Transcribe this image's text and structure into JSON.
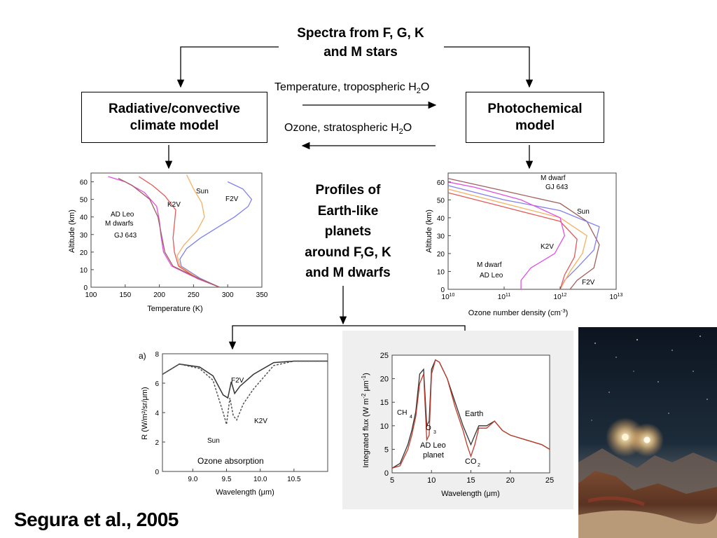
{
  "title": {
    "line1": "Spectra from F, G, K",
    "line2": "and M stars"
  },
  "boxes": {
    "climate": {
      "line1": "Radiative/convective",
      "line2": "climate model"
    },
    "photochem": {
      "line1": "Photochemical",
      "line2": "model"
    }
  },
  "arrows": {
    "top": "Temperature, tropospheric H",
    "top_sub": "2",
    "top_end": "O",
    "bottom": "Ozone, stratospheric H",
    "bottom_sub": "2",
    "bottom_end": "O"
  },
  "center": {
    "lines": [
      "Profiles of",
      "Earth-like",
      "planets",
      "around F,G, K",
      "and M dwarfs"
    ]
  },
  "credit": "Segura et al., 2005",
  "colors": {
    "sun": "#f5b062",
    "f2v": "#8080f0",
    "k2v": "#e55a5a",
    "mdwarf_ad": "#e050e0",
    "mdwarf_gj": "#a06060",
    "orange2": "#f0a050"
  },
  "chart_data": [
    {
      "type": "line",
      "id": "temperature",
      "xlabel": "Temperature (K)",
      "ylabel": "Altitude (km)",
      "xlim": [
        100,
        350
      ],
      "ylim": [
        0,
        65
      ],
      "xticks": [
        "100",
        "150",
        "200",
        "250",
        "300",
        "350"
      ],
      "yticks": [
        "0",
        "10",
        "20",
        "30",
        "40",
        "50",
        "60"
      ],
      "annotations": [
        "Sun",
        "F2V",
        "K2V",
        "AD Leo",
        "M dwarfs",
        "GJ 643"
      ],
      "series": [
        {
          "name": "F2V",
          "color": "#8080f0",
          "points": [
            [
              288,
              0
            ],
            [
              260,
              5
            ],
            [
              232,
              12
            ],
            [
              230,
              16
            ],
            [
              240,
              22
            ],
            [
              260,
              28
            ],
            [
              285,
              34
            ],
            [
              310,
              40
            ],
            [
              330,
              46
            ],
            [
              335,
              50
            ],
            [
              322,
              56
            ],
            [
              300,
              60
            ]
          ]
        },
        {
          "name": "Sun",
          "color": "#f5b062",
          "points": [
            [
              288,
              0
            ],
            [
              258,
              5
            ],
            [
              230,
              12
            ],
            [
              226,
              18
            ],
            [
              236,
              24
            ],
            [
              255,
              32
            ],
            [
              266,
              40
            ],
            [
              262,
              48
            ],
            [
              250,
              56
            ],
            [
              240,
              64
            ]
          ]
        },
        {
          "name": "K2V",
          "color": "#e55a5a",
          "points": [
            [
              288,
              0
            ],
            [
              255,
              5
            ],
            [
              228,
              12
            ],
            [
              222,
              20
            ],
            [
              220,
              28
            ],
            [
              222,
              36
            ],
            [
              224,
              44
            ],
            [
              208,
              52
            ],
            [
              190,
              58
            ],
            [
              170,
              63
            ]
          ]
        },
        {
          "name": "M dwarfs",
          "color": "#e050e0",
          "points": [
            [
              288,
              0
            ],
            [
              250,
              6
            ],
            [
              218,
              12
            ],
            [
              206,
              20
            ],
            [
              202,
              30
            ],
            [
              200,
              38
            ],
            [
              196,
              46
            ],
            [
              178,
              54
            ],
            [
              150,
              60
            ],
            [
              125,
              63
            ]
          ]
        },
        {
          "name": "",
          "color": "#a06060",
          "points": [
            [
              288,
              0
            ],
            [
              252,
              6
            ],
            [
              220,
              12
            ],
            [
              208,
              20
            ],
            [
              203,
              30
            ],
            [
              198,
              40
            ],
            [
              186,
              50
            ],
            [
              160,
              58
            ],
            [
              140,
              62
            ]
          ]
        }
      ]
    },
    {
      "type": "line",
      "id": "ozone",
      "xlabel": "Ozone number density (cm",
      "xlabel_sup": "-3",
      "xlabel_end": ")",
      "ylabel": "Altitude (km)",
      "xscale": "log",
      "xlim": [
        10000000000.0,
        10000000000000.0
      ],
      "ylim": [
        0,
        65
      ],
      "xticks": [
        "10",
        "10",
        "10",
        "10"
      ],
      "xtick_sups": [
        "10",
        "11",
        "12",
        "13"
      ],
      "yticks": [
        "0",
        "10",
        "20",
        "30",
        "40",
        "50",
        "60"
      ],
      "annotations": [
        "M dwarf",
        "GJ 643",
        "Sun",
        "K2V",
        "M dwarf",
        "AD Leo",
        "F2V"
      ],
      "series": [
        {
          "name": "GJ 643",
          "color": "#a06060",
          "points": [
            [
              10000000000.0,
              62
            ],
            [
              100000000000.0,
              55
            ],
            [
              1000000000000.0,
              48
            ],
            [
              3000000000000.0,
              38
            ],
            [
              5000000000000.0,
              25
            ],
            [
              4000000000000.0,
              12
            ],
            [
              2000000000000.0,
              5
            ],
            [
              1500000000000.0,
              0
            ]
          ]
        },
        {
          "name": "F2V",
          "color": "#8080f0",
          "points": [
            [
              10000000000.0,
              58
            ],
            [
              100000000000.0,
              50
            ],
            [
              1000000000000.0,
              44
            ],
            [
              5000000000000.0,
              35
            ],
            [
              4000000000000.0,
              22
            ],
            [
              2000000000000.0,
              12
            ],
            [
              1200000000000.0,
              5
            ],
            [
              1000000000000.0,
              0
            ]
          ]
        },
        {
          "name": "Sun",
          "color": "#f5b062",
          "points": [
            [
              10000000000.0,
              56
            ],
            [
              100000000000.0,
              48
            ],
            [
              1000000000000.0,
              40
            ],
            [
              3000000000000.0,
              30
            ],
            [
              2500000000000.0,
              20
            ],
            [
              1500000000000.0,
              10
            ],
            [
              1000000000000.0,
              0
            ]
          ]
        },
        {
          "name": "K2V",
          "color": "#e55a5a",
          "points": [
            [
              10000000000.0,
              54
            ],
            [
              100000000000.0,
              46
            ],
            [
              1000000000000.0,
              38
            ],
            [
              2000000000000.0,
              28
            ],
            [
              1800000000000.0,
              18
            ],
            [
              1200000000000.0,
              8
            ],
            [
              1000000000000.0,
              0
            ]
          ]
        },
        {
          "name": "AD Leo",
          "color": "#e050e0",
          "points": [
            [
              10000000000.0,
              60
            ],
            [
              30000000000.0,
              57
            ],
            [
              200000000000.0,
              50
            ],
            [
              1000000000000.0,
              40
            ],
            [
              1200000000000.0,
              30
            ],
            [
              800000000000.0,
              20
            ],
            [
              300000000000.0,
              12
            ],
            [
              200000000000.0,
              5
            ],
            [
              200000000000.0,
              0
            ]
          ]
        }
      ]
    },
    {
      "type": "line",
      "id": "reflectance",
      "panel_label": "a)",
      "xlabel": "Wavelength (μm)",
      "ylabel": "R (W/m²/sr/μm)",
      "xlim": [
        8.55,
        11.0
      ],
      "ylim": [
        0,
        8
      ],
      "xticks": [
        "9.0",
        "9.5",
        "10.0",
        "10.5"
      ],
      "yticks": [
        "0",
        "2",
        "4",
        "6",
        "8"
      ],
      "annotations": [
        "F2V",
        "Sun",
        "K2V",
        "Ozone absorption"
      ],
      "series": [
        {
          "name": "F2V",
          "color": "#333333",
          "points": [
            [
              8.55,
              6.6
            ],
            [
              8.8,
              7.3
            ],
            [
              9.1,
              7.1
            ],
            [
              9.3,
              6.5
            ],
            [
              9.45,
              5.2
            ],
            [
              9.52,
              5.0
            ],
            [
              9.57,
              6.1
            ],
            [
              9.62,
              5.3
            ],
            [
              9.7,
              5.8
            ],
            [
              9.9,
              6.6
            ],
            [
              10.2,
              7.4
            ],
            [
              10.5,
              7.5
            ],
            [
              11.0,
              7.5
            ]
          ]
        },
        {
          "name": "Sun",
          "color": "#555555",
          "points": [
            [
              8.55,
              6.6
            ],
            [
              8.8,
              7.3
            ],
            [
              9.1,
              7.0
            ],
            [
              9.3,
              6.2
            ],
            [
              9.45,
              4.0
            ],
            [
              9.5,
              3.2
            ],
            [
              9.55,
              5.0
            ],
            [
              9.6,
              3.8
            ],
            [
              9.65,
              3.5
            ],
            [
              9.75,
              4.6
            ],
            [
              9.9,
              5.6
            ],
            [
              10.2,
              7.2
            ],
            [
              10.5,
              7.5
            ],
            [
              11.0,
              7.5
            ]
          ]
        }
      ]
    },
    {
      "type": "line",
      "id": "flux",
      "xlabel": "Wavelength (μm)",
      "ylabel": "Integrated flux (W m",
      "ylabel_sup1": "-2",
      "ylabel_mid": " μm",
      "ylabel_sup2": "-1",
      "ylabel_end": ")",
      "xlim": [
        5,
        25
      ],
      "ylim": [
        0,
        25
      ],
      "xticks": [
        "5",
        "10",
        "15",
        "20",
        "25"
      ],
      "yticks": [
        "0",
        "5",
        "10",
        "15",
        "20",
        "25"
      ],
      "annotations": [
        "CH",
        "4",
        "O",
        "3",
        "Earth",
        "AD Leo",
        "planet",
        "CO",
        "2"
      ],
      "series": [
        {
          "name": "Earth",
          "color": "#333333",
          "points": [
            [
              5,
              1
            ],
            [
              6,
              2
            ],
            [
              7,
              6
            ],
            [
              7.5,
              9
            ],
            [
              8,
              13
            ],
            [
              8.5,
              21
            ],
            [
              9,
              22
            ],
            [
              9.4,
              10
            ],
            [
              9.7,
              11
            ],
            [
              10,
              22
            ],
            [
              10.5,
              24
            ],
            [
              11,
              23.5
            ],
            [
              12,
              20
            ],
            [
              13,
              15
            ],
            [
              14,
              10
            ],
            [
              14.5,
              8
            ],
            [
              15,
              6
            ],
            [
              15.5,
              8
            ],
            [
              16,
              10
            ],
            [
              17,
              10
            ],
            [
              18,
              11
            ],
            [
              19,
              9
            ],
            [
              20,
              8
            ],
            [
              22,
              7
            ],
            [
              24,
              6
            ],
            [
              25,
              5
            ]
          ]
        },
        {
          "name": "AD Leo planet",
          "color": "#c0392b",
          "points": [
            [
              5,
              1
            ],
            [
              6,
              1.5
            ],
            [
              7,
              5
            ],
            [
              7.5,
              8
            ],
            [
              8,
              12
            ],
            [
              8.5,
              19
            ],
            [
              9,
              21
            ],
            [
              9.4,
              7
            ],
            [
              9.7,
              8
            ],
            [
              10,
              21
            ],
            [
              10.5,
              24
            ],
            [
              11,
              23.5
            ],
            [
              12,
              20
            ],
            [
              13,
              14
            ],
            [
              14,
              9
            ],
            [
              14.5,
              6
            ],
            [
              15,
              3.5
            ],
            [
              15.5,
              6
            ],
            [
              16,
              9.5
            ],
            [
              17,
              9.5
            ],
            [
              18,
              11
            ],
            [
              19,
              9
            ],
            [
              20,
              8
            ],
            [
              22,
              7
            ],
            [
              24,
              6
            ],
            [
              25,
              5
            ]
          ]
        }
      ]
    }
  ]
}
